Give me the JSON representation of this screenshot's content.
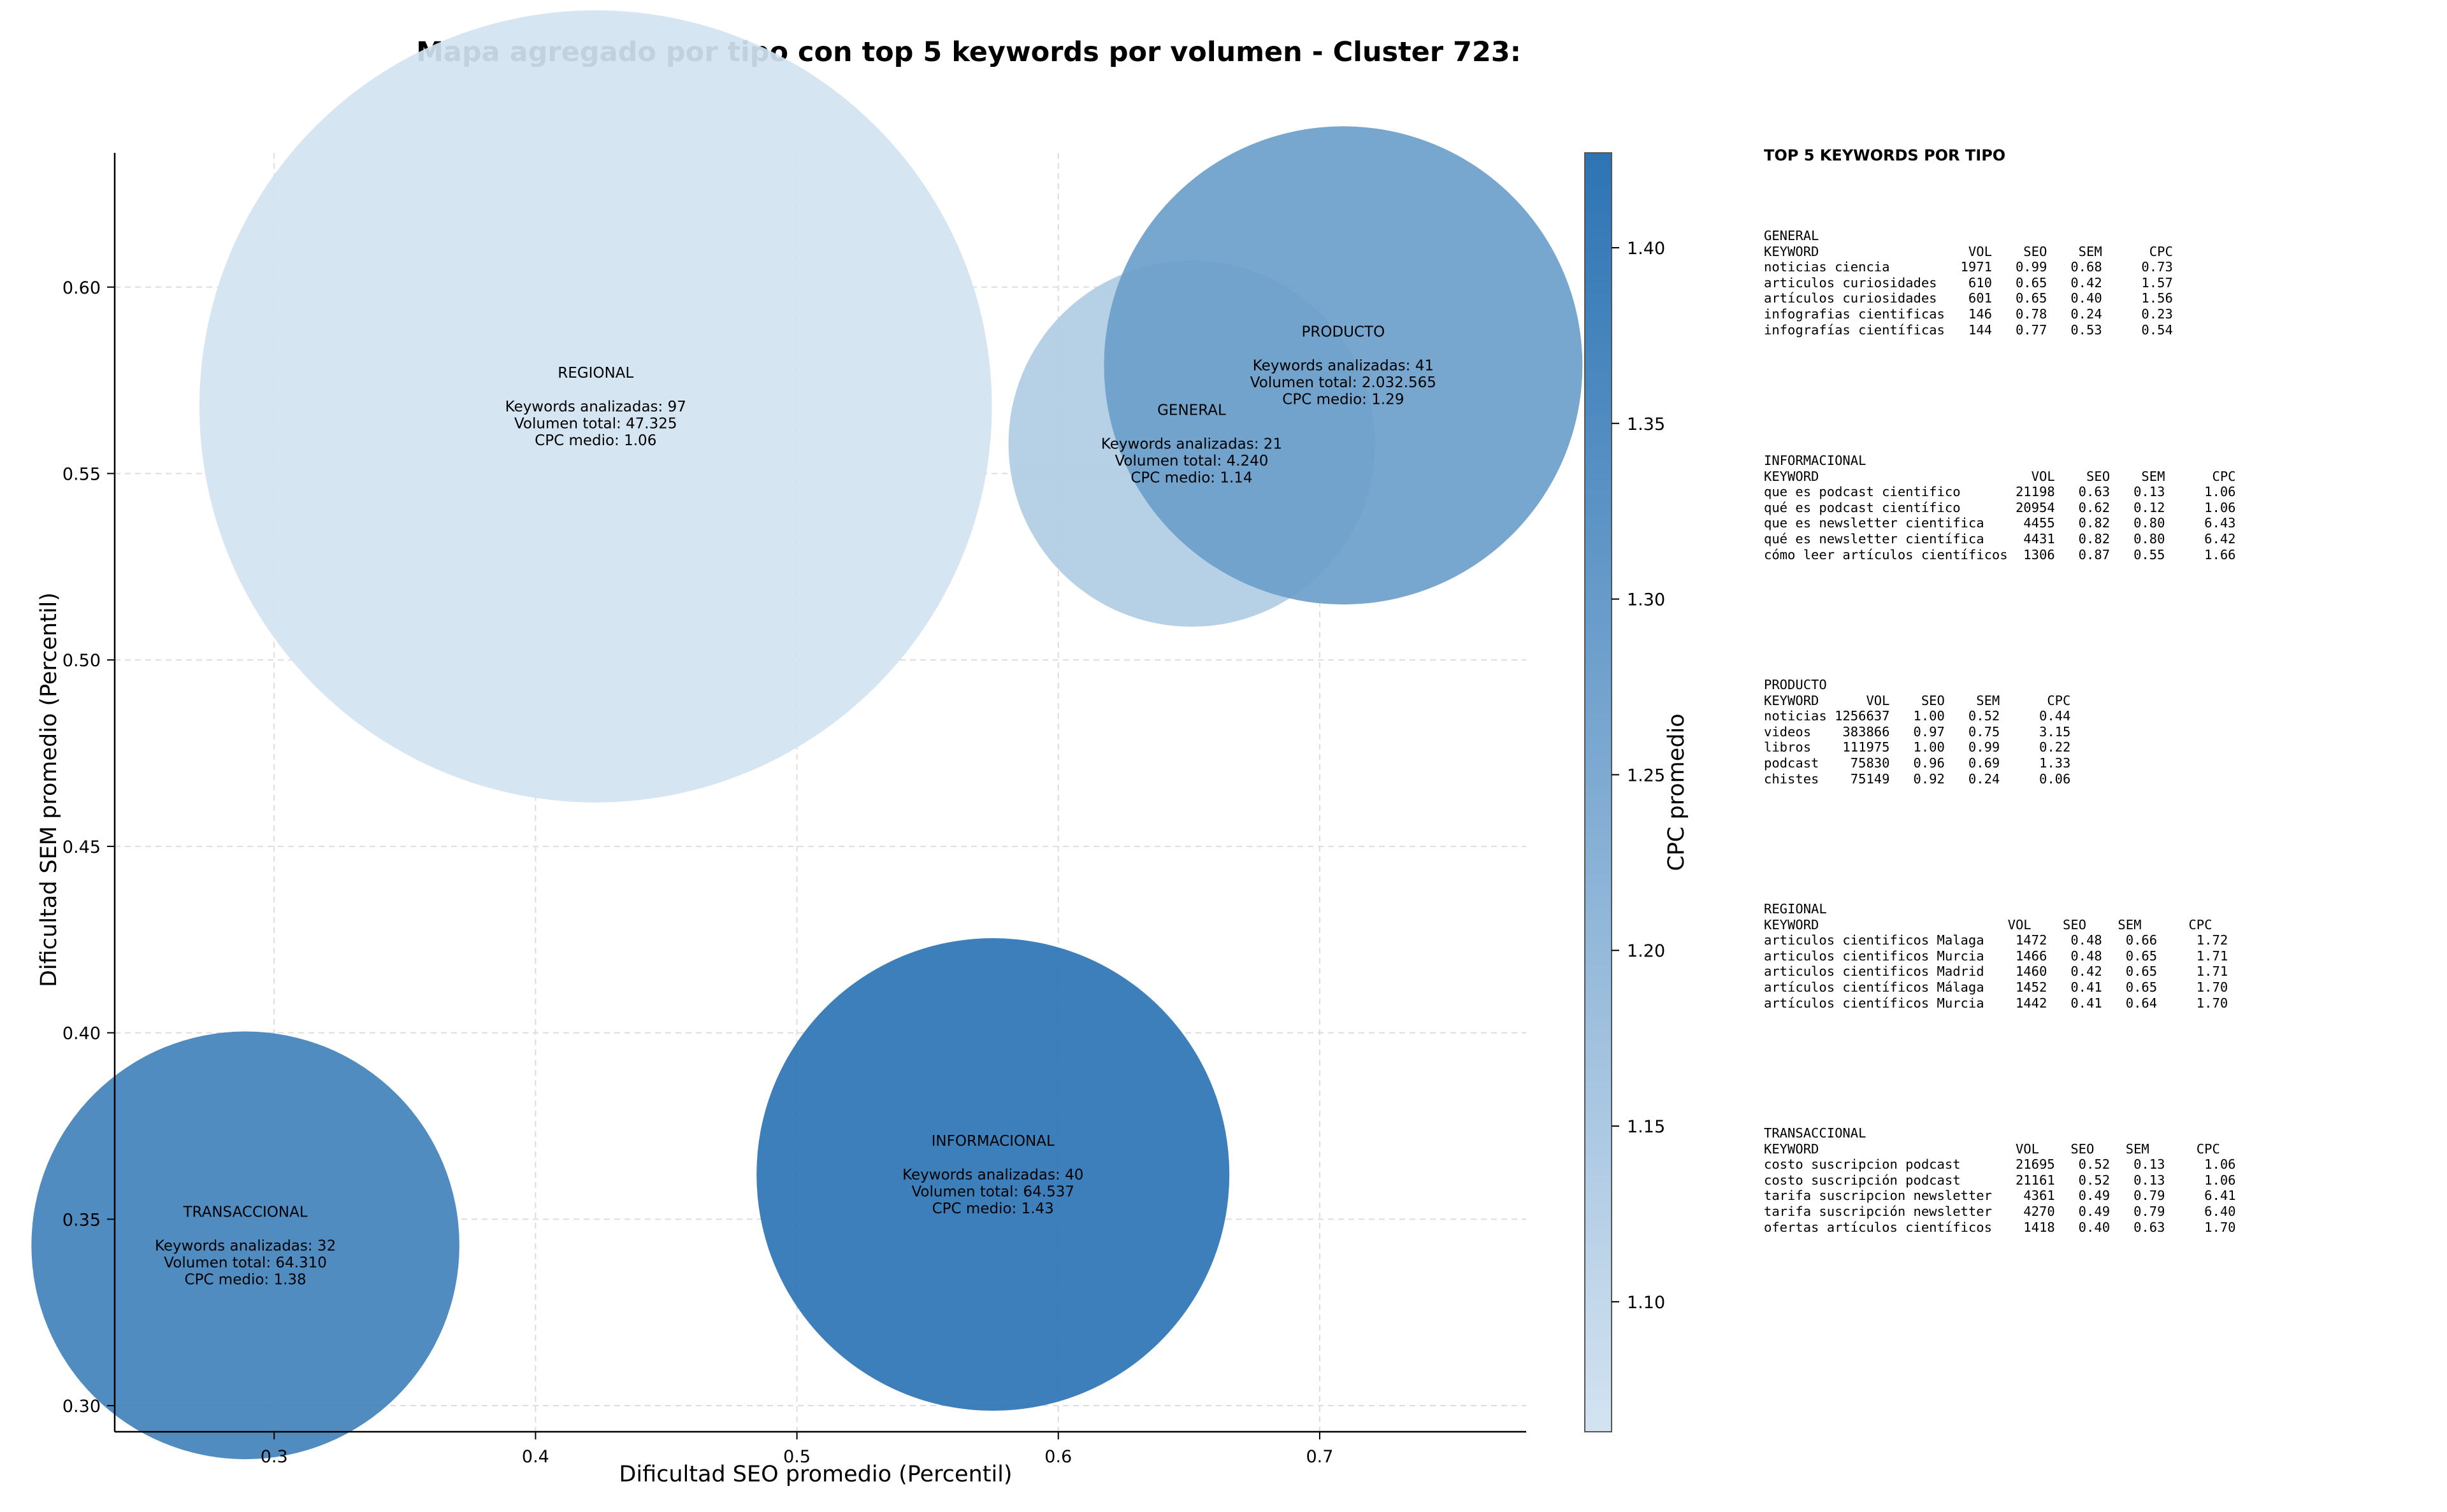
{
  "chart_data": {
    "type": "scatter",
    "title": "Mapa agregado por tipo con top 5 keywords por volumen - Cluster 723:",
    "xlabel": "Dificultad SEO promedio (Percentil)",
    "ylabel": "Dificultad SEM promedio (Percentil)",
    "xlim": [
      0.239,
      0.779
    ],
    "ylim": [
      0.293,
      0.636
    ],
    "xticks": [
      "0.3",
      "0.4",
      "0.5",
      "0.6",
      "0.7"
    ],
    "yticks": [
      "0.30",
      "0.35",
      "0.40",
      "0.45",
      "0.50",
      "0.55",
      "0.60"
    ],
    "grid": true,
    "colorbar": {
      "label": "CPC promedio",
      "min": 1.063,
      "max": 1.427,
      "ticks": [
        "1.10",
        "1.15",
        "1.20",
        "1.25",
        "1.30",
        "1.35",
        "1.40"
      ],
      "color_low": "#d3e3f1",
      "color_high": "#2d74b4"
    },
    "points": [
      {
        "tipo": "REGIONAL",
        "x": 0.423,
        "y": 0.568,
        "keywords": 97,
        "volumen": "47.325",
        "volumen_total": 47325,
        "cpc": 1.06,
        "label": [
          "REGIONAL",
          "",
          "Keywords analizadas: 97",
          "Volumen total: 47.325",
          "CPC medio: 1.06"
        ]
      },
      {
        "tipo": "GENERAL",
        "x": 0.651,
        "y": 0.558,
        "keywords": 21,
        "volumen": "4.240",
        "volumen_total": 4240,
        "cpc": 1.14,
        "label": [
          "GENERAL",
          "",
          "Keywords analizadas: 21",
          "Volumen total: 4.240",
          "CPC medio: 1.14"
        ]
      },
      {
        "tipo": "PRODUCTO",
        "x": 0.709,
        "y": 0.579,
        "keywords": 41,
        "volumen": "2.032.565",
        "volumen_total": 2032565,
        "cpc": 1.29,
        "label": [
          "PRODUCTO",
          "",
          "Keywords analizadas: 41",
          "Volumen total: 2.032.565",
          "CPC medio: 1.29"
        ]
      },
      {
        "tipo": "INFORMACIONAL",
        "x": 0.575,
        "y": 0.362,
        "keywords": 40,
        "volumen": "64.537",
        "volumen_total": 64537,
        "cpc": 1.43,
        "label": [
          "INFORMACIONAL",
          "",
          "Keywords analizadas: 40",
          "Volumen total: 64.537",
          "CPC medio: 1.43"
        ]
      },
      {
        "tipo": "TRANSACCIONAL",
        "x": 0.289,
        "y": 0.343,
        "keywords": 32,
        "volumen": "64.310",
        "volumen_total": 64310,
        "cpc": 1.38,
        "label": [
          "TRANSACCIONAL",
          "",
          "Keywords analizadas: 32",
          "Volumen total: 64.310",
          "CPC medio: 1.38"
        ]
      }
    ]
  },
  "keywords_panel": {
    "title": "TOP 5 KEYWORDS POR TIPO",
    "groups": [
      {
        "name": "GENERAL",
        "text": "GENERAL\nKEYWORD                   VOL    SEO    SEM      CPC\nnoticias ciencia         1971   0.99   0.68     0.73\narticulos curiosidades    610   0.65   0.42     1.57\nartículos curiosidades    601   0.65   0.40     1.56\ninfografias cientificas   146   0.78   0.24     0.23\ninfografías científicas   144   0.77   0.53     0.54"
      },
      {
        "name": "INFORMACIONAL",
        "text": "INFORMACIONAL\nKEYWORD                           VOL    SEO    SEM      CPC\nque es podcast cientifico       21198   0.63   0.13     1.06\nqué es podcast científico       20954   0.62   0.12     1.06\nque es newsletter cientifica     4455   0.82   0.80     6.43\nqué es newsletter científica     4431   0.82   0.80     6.42\ncómo leer artículos científicos  1306   0.87   0.55     1.66"
      },
      {
        "name": "PRODUCTO",
        "text": "PRODUCTO\nKEYWORD      VOL    SEO    SEM      CPC\nnoticias 1256637   1.00   0.52     0.44\nvideos    383866   0.97   0.75     3.15\nlibros    111975   1.00   0.99     0.22\npodcast    75830   0.96   0.69     1.33\nchistes    75149   0.92   0.24     0.06"
      },
      {
        "name": "REGIONAL",
        "text": "REGIONAL\nKEYWORD                        VOL    SEO    SEM      CPC\narticulos cientificos Malaga    1472   0.48   0.66     1.72\narticulos cientificos Murcia    1466   0.48   0.65     1.71\narticulos cientificos Madrid    1460   0.42   0.65     1.71\nartículos científicos Málaga    1452   0.41   0.65     1.70\nartículos científicos Murcia    1442   0.41   0.64     1.70"
      },
      {
        "name": "TRANSACCIONAL",
        "text": "TRANSACCIONAL\nKEYWORD                         VOL    SEO    SEM      CPC\ncosto suscripcion podcast       21695   0.52   0.13     1.06\ncosto suscripción podcast       21161   0.52   0.13     1.06\ntarifa suscripcion newsletter    4361   0.49   0.79     6.41\ntarifa suscripción newsletter    4270   0.49   0.79     6.40\nofertas artículos científicos    1418   0.40   0.63     1.70"
      }
    ]
  }
}
